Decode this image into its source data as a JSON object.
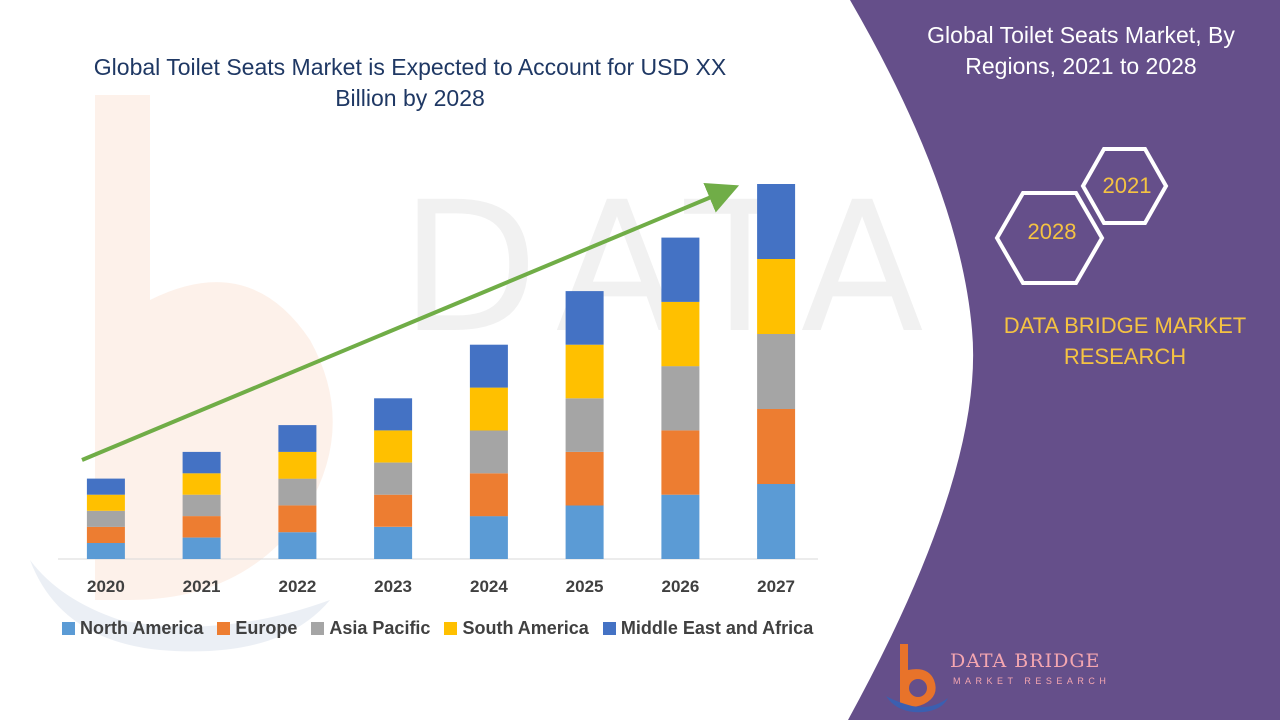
{
  "chart_data": {
    "type": "bar",
    "stacked": true,
    "title": "Global Toilet Seats Market is Expected to Account for USD XX Billion by 2028",
    "categories": [
      "2020",
      "2021",
      "2022",
      "2023",
      "2024",
      "2025",
      "2026",
      "2027"
    ],
    "series": [
      {
        "name": "North America",
        "color": "#5b9bd5",
        "values": [
          1.5,
          2.0,
          2.5,
          3.0,
          4.0,
          5.0,
          6.0,
          7.0
        ]
      },
      {
        "name": "Europe",
        "color": "#ed7d31",
        "values": [
          1.5,
          2.0,
          2.5,
          3.0,
          4.0,
          5.0,
          6.0,
          7.0
        ]
      },
      {
        "name": "Asia Pacific",
        "color": "#a5a5a5",
        "values": [
          1.5,
          2.0,
          2.5,
          3.0,
          4.0,
          5.0,
          6.0,
          7.0
        ]
      },
      {
        "name": "South America",
        "color": "#ffc000",
        "values": [
          1.5,
          2.0,
          2.5,
          3.0,
          4.0,
          5.0,
          6.0,
          7.0
        ]
      },
      {
        "name": "Middle East and Africa",
        "color": "#4472c4",
        "values": [
          1.5,
          2.0,
          2.5,
          3.0,
          4.0,
          5.0,
          6.0,
          7.0
        ]
      }
    ],
    "ylim": [
      0,
      35
    ],
    "grid": false,
    "legend": "bottom",
    "trend_arrow": {
      "color": "#70ad47"
    }
  },
  "panel": {
    "title": "Global Toilet Seats Market, By Regions, 2021 to 2028",
    "hex_left": "2028",
    "hex_right": "2021",
    "brand": "DATA BRIDGE MARKET RESEARCH",
    "logo_main": "DATA BRIDGE",
    "logo_sub": "MARKET RESEARCH",
    "bg_color": "#654f8a",
    "accent_color": "#f5c342"
  }
}
